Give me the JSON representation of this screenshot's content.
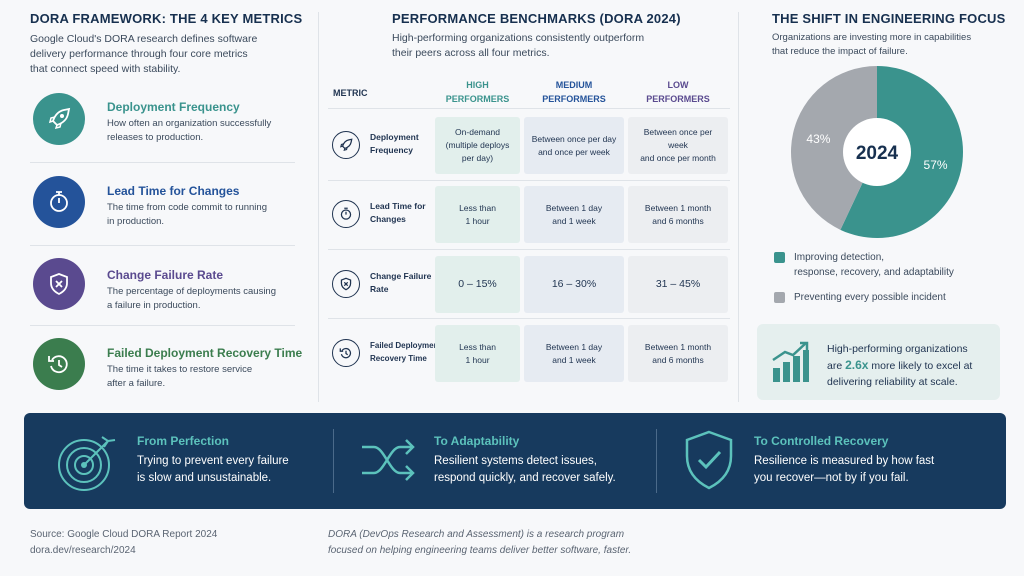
{
  "left": {
    "title": "DORA FRAMEWORK: THE 4 KEY METRICS",
    "intro": [
      "Google Cloud's DORA research defines software",
      "delivery performance through four core metrics",
      "that connect speed with stability."
    ],
    "metrics": [
      {
        "title": "Deployment Frequency",
        "desc": [
          "How often an organization successfully",
          "releases to production."
        ],
        "icon": "rocket-icon",
        "color": "#3a938d"
      },
      {
        "title": "Lead Time for Changes",
        "desc": [
          "The time from code commit to running",
          "in production."
        ],
        "icon": "stopwatch-icon",
        "color": "#24539a"
      },
      {
        "title": "Change Failure Rate",
        "desc": [
          "The percentage of deployments causing",
          "a failure in production."
        ],
        "icon": "shield-x-icon",
        "color": "#5a4a8f"
      },
      {
        "title": "Failed Deployment Recovery Time",
        "desc": [
          "The time it takes to restore service",
          "after a failure."
        ],
        "icon": "restore-clock-icon",
        "color": "#3b7d4e"
      }
    ]
  },
  "middle": {
    "title": "PERFORMANCE BENCHMARKS (DORA 2024)",
    "intro": [
      "High-performing organizations consistently outperform",
      "their peers across all four metrics."
    ],
    "metric_header": "METRIC",
    "headers": [
      {
        "l1": "HIGH",
        "l2": "PERFORMERS",
        "color": "#3a938d"
      },
      {
        "l1": "MEDIUM",
        "l2": "PERFORMERS",
        "color": "#24539a"
      },
      {
        "l1": "LOW",
        "l2": "PERFORMERS",
        "color": "#5a4a8f"
      }
    ],
    "rows": [
      {
        "label": [
          "Deployment",
          "Frequency"
        ],
        "icon": "rocket-icon",
        "cells": [
          [
            "On-demand",
            "(multiple deploys",
            "per day)"
          ],
          [
            "Between once per day",
            "and once per week"
          ],
          [
            "Between once per week",
            "and once per month"
          ]
        ]
      },
      {
        "label": [
          "Lead Time for",
          "Changes"
        ],
        "icon": "stopwatch-icon",
        "cells": [
          [
            "Less than",
            "1 hour"
          ],
          [
            "Between 1 day",
            "and 1 week"
          ],
          [
            "Between 1 month",
            "and 6 months"
          ]
        ]
      },
      {
        "label": [
          "Change Failure",
          "Rate"
        ],
        "icon": "shield-x-icon",
        "cells": [
          [
            "0 – 15%"
          ],
          [
            "16 – 30%"
          ],
          [
            "31 – 45%"
          ]
        ]
      },
      {
        "label": [
          "Failed Deployment",
          "Recovery Time"
        ],
        "icon": "restore-clock-icon",
        "cells": [
          [
            "Less than",
            "1 hour"
          ],
          [
            "Between 1 day",
            "and 1 week"
          ],
          [
            "Between 1 month",
            "and 6 months"
          ]
        ]
      }
    ]
  },
  "right": {
    "title": "THE SHIFT IN ENGINEERING FOCUS",
    "intro": [
      "Organizations are investing more in capabilities",
      "that reduce the impact of failure."
    ],
    "center_label": "2024",
    "legend": [
      {
        "text": [
          "Improving detection,",
          "response, recovery, and adaptability"
        ],
        "color": "#3a938d"
      },
      {
        "text": [
          "Preventing every possible incident"
        ],
        "color": "#a4a8ae"
      }
    ],
    "callout": {
      "l1": "High-performing organizations",
      "pre": "are",
      "stat": "2.6x",
      "post": "more likely to excel at",
      "l3": "delivering reliability at scale."
    }
  },
  "chart_data": {
    "type": "pie",
    "categories": [
      "Improving detection, response, recovery, and adaptability",
      "Preventing every possible incident"
    ],
    "values": [
      57,
      43
    ],
    "labels": [
      "57%",
      "43%"
    ],
    "title": "THE SHIFT IN ENGINEERING FOCUS",
    "colors": [
      "#3a938d",
      "#a4a8ae"
    ]
  },
  "banner": [
    {
      "title": "From Perfection",
      "text": [
        "Trying to prevent every failure",
        "is slow and unsustainable."
      ],
      "icon": "target-icon"
    },
    {
      "title": "To Adaptability",
      "text": [
        "Resilient systems detect issues,",
        "respond quickly, and recover safely."
      ],
      "icon": "shuffle-arrows-icon"
    },
    {
      "title": "To Controlled Recovery",
      "text": [
        "Resilience is measured by how fast",
        "you recover—not by if you fail."
      ],
      "icon": "shield-check-icon"
    }
  ],
  "footer": {
    "source": [
      "Source: Google Cloud DORA Report 2024",
      "dora.dev/research/2024"
    ],
    "note": [
      "DORA (DevOps Research and Assessment) is a research program",
      "focused on helping engineering teams deliver better software, faster."
    ]
  }
}
